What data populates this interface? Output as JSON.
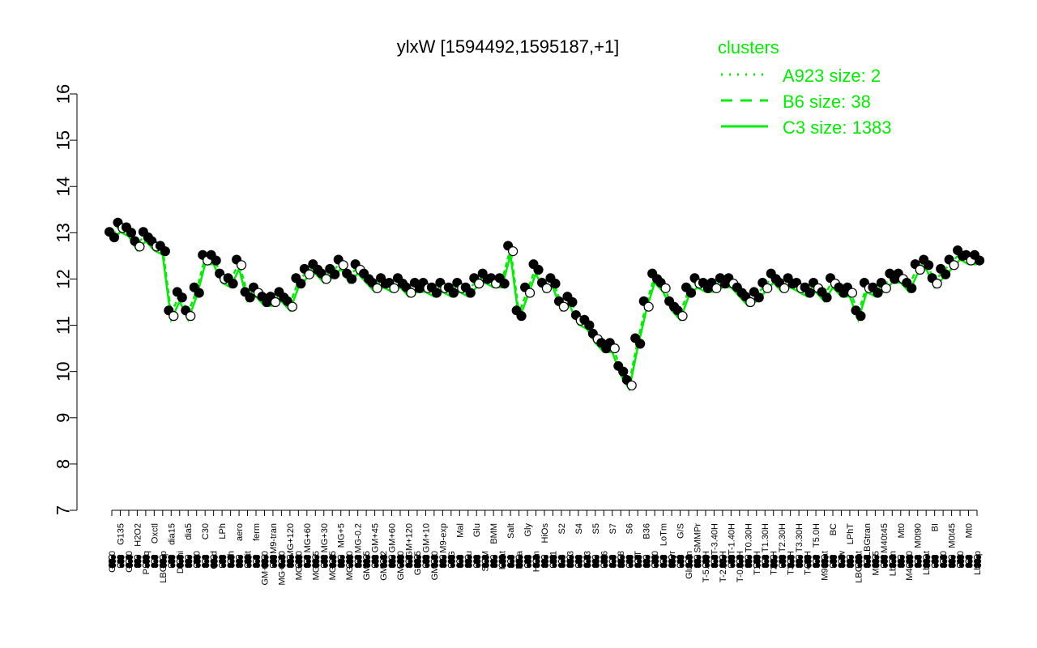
{
  "colors": {
    "cluster": "#00ee00",
    "points": "#000000",
    "background": "#ffffff"
  },
  "chart_data": {
    "type": "line",
    "title": "ylxW [1594492,1595187,+1]",
    "xlabel": "",
    "ylabel": "",
    "ylim": [
      7,
      16
    ],
    "yticks": [
      "7",
      "8",
      "9",
      "10",
      "11",
      "12",
      "13",
      "14",
      "15",
      "16"
    ],
    "grid": false,
    "legend": {
      "title": "clusters",
      "placement": "top-right",
      "entries": [
        {
          "label": "A923 size: 2",
          "style": "dotted"
        },
        {
          "label": "B6 size: 38",
          "style": "dashed"
        },
        {
          "label": "C3 size: 1383",
          "style": "solid"
        }
      ]
    },
    "x_labels": [
      "G150",
      "G135",
      "G180",
      "H2O2",
      "Paraq",
      "Oxctl",
      "LBGexp",
      "dia15",
      "Diami",
      "dia5",
      "C90",
      "C30",
      "Cold",
      "LPh",
      "HPh",
      "aero",
      "nit",
      "ferm",
      "GM+150",
      "M9-tran",
      "MG+150",
      "MG+120",
      "MG+90",
      "MG+60",
      "MG+45",
      "MG+30",
      "MG+15",
      "MG+5",
      "MG+10",
      "MG-0.2",
      "GM+15",
      "GM+45",
      "GM-0.2",
      "GM+60",
      "GM+90",
      "GM+120",
      "GM+5",
      "GM+10",
      "GM+30",
      "M9-exp",
      "M/G",
      "Mal",
      "Fru",
      "Glu",
      "SMM",
      "BMM",
      "Heat",
      "Salt",
      "Etha",
      "Gly",
      "HiTm",
      "HiOs",
      "S1",
      "S2",
      "S3",
      "S4",
      "S3",
      "S5",
      "S6",
      "S7",
      "S8",
      "S6",
      "BT",
      "B36",
      "B60",
      "LoTm",
      "Pyr",
      "G/S",
      "Glucon",
      "SMMPr",
      "T-5.40H",
      "T-3.40H",
      "T-2.40H",
      "T-1.40H",
      "T-0.40H",
      "T0.30H",
      "T1.0H",
      "T1.30H",
      "T2.0H",
      "T2.30H",
      "T3.0H",
      "T3.30H",
      "T4.0H",
      "T5.0H",
      "M9-stat",
      "BC",
      "Sw",
      "LPhT",
      "LBGstat",
      "LBGtran",
      "M0t45",
      "M40t45",
      "Lbtran",
      "Mt0",
      "M40t90",
      "M0t90",
      "Lbstat",
      "BI",
      "S0",
      "M0t45",
      "dia0",
      "Mt0",
      "Lbexp"
    ],
    "series": [
      {
        "values": [
          12.9,
          13.1,
          13.0,
          12.7,
          12.9,
          12.7,
          12.6,
          11.2,
          11.6,
          11.2,
          11.7,
          12.4,
          12.4,
          12.0,
          11.9,
          12.3,
          11.6,
          11.7,
          11.5,
          11.5,
          11.6,
          11.4,
          11.9,
          12.1,
          12.2,
          12.0,
          12.1,
          12.3,
          12.0,
          12.2,
          12.0,
          11.8,
          11.9,
          11.8,
          11.9,
          11.7,
          11.8,
          11.8,
          11.7,
          11.8,
          11.7,
          11.8,
          11.7,
          11.9,
          12.0,
          11.9,
          11.9,
          12.6,
          11.2,
          11.7,
          12.2,
          11.8,
          11.9,
          11.4,
          11.5,
          11.1,
          11.0,
          10.7,
          10.5,
          10.5,
          10.0,
          9.7,
          10.6,
          11.4,
          12.0,
          11.8,
          11.4,
          11.2,
          11.7,
          11.9,
          11.8,
          11.8,
          11.9,
          11.9,
          11.7,
          11.5,
          11.6,
          11.8,
          12.0,
          11.8,
          11.9,
          11.8,
          11.7,
          11.8,
          11.6,
          11.9,
          11.7,
          11.7,
          11.2,
          11.8,
          11.7,
          11.8,
          12.0,
          12.0,
          11.8,
          12.2,
          12.3,
          11.9,
          12.1,
          12.3,
          12.5,
          12.4,
          12.4
        ]
      }
    ]
  }
}
